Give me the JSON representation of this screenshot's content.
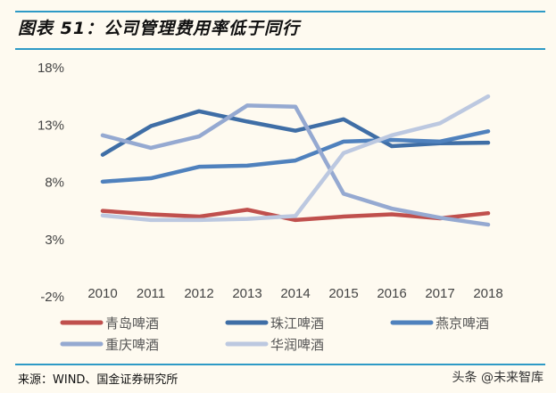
{
  "title": "图表 51：公司管理费用率低于同行",
  "source": "来源：WIND、国金证券研究所",
  "watermark": "头条 @未来智库",
  "chart_data": {
    "type": "line",
    "title": "",
    "xlabel": "",
    "ylabel": "",
    "categories": [
      "2010",
      "2011",
      "2012",
      "2013",
      "2014",
      "2015",
      "2016",
      "2017",
      "2018"
    ],
    "ylim": [
      -2,
      18
    ],
    "yticks": [
      -2,
      3,
      8,
      13,
      18
    ],
    "ytick_labels": [
      "-2%",
      "3%",
      "8%",
      "13%",
      "18%"
    ],
    "grid": false,
    "legend": "bottom",
    "series": [
      {
        "name": "青岛啤酒",
        "color": "#c0504d",
        "values": [
          5.5,
          5.2,
          5.0,
          5.6,
          4.7,
          5.0,
          5.2,
          4.85,
          5.3
        ]
      },
      {
        "name": "珠江啤酒",
        "color": "#3f6ea6",
        "values": [
          10.4,
          12.9,
          14.2,
          13.3,
          12.5,
          13.5,
          11.15,
          11.4,
          11.45
        ]
      },
      {
        "name": "燕京啤酒",
        "color": "#4f81bd",
        "values": [
          8.05,
          8.35,
          9.35,
          9.45,
          9.9,
          11.55,
          11.7,
          11.55,
          12.45
        ]
      },
      {
        "name": "重庆啤酒",
        "color": "#95a9d1",
        "values": [
          12.1,
          11.0,
          12.0,
          14.7,
          14.6,
          7.0,
          5.7,
          4.9,
          4.3
        ]
      },
      {
        "name": "华润啤酒",
        "color": "#bcc8e0",
        "values": [
          5.1,
          4.7,
          4.7,
          4.8,
          5.05,
          10.55,
          12.1,
          13.15,
          15.5
        ]
      }
    ]
  }
}
